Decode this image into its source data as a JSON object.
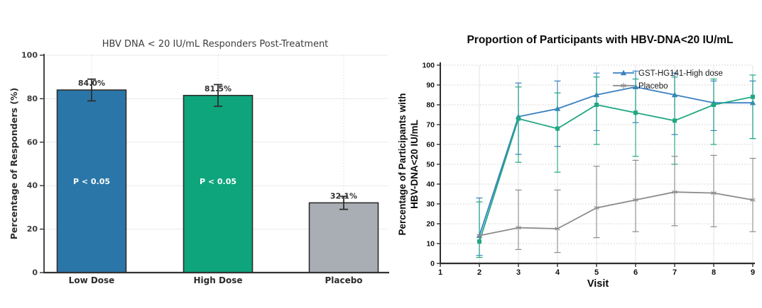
{
  "figure": {
    "background": "#ffffff"
  },
  "chart_data": [
    {
      "id": "responders-bar-chart",
      "type": "bar",
      "title": "HBV DNA < 20 IU/mL Responders Post-Treatment",
      "ylabel": "Percentage of Responders (%)",
      "categories": [
        "Low Dose",
        "High Dose",
        "Placebo"
      ],
      "values": [
        84.0,
        81.5,
        32.1
      ],
      "value_labels": [
        "84.0%",
        "81.5%",
        "32.1%"
      ],
      "error": [
        5,
        5,
        3
      ],
      "bar_annotations": [
        "P < 0.05",
        "P < 0.05",
        null
      ],
      "colors": [
        "#2b76a8",
        "#0ea57c",
        "#a9aeb4"
      ],
      "bar_edge_color": "#2d2d2d",
      "ylim": [
        0,
        100
      ],
      "yticks": [
        0,
        20,
        40,
        60,
        80,
        100
      ],
      "grid": {
        "horizontal": "solid-light",
        "vertical": "dotted-at-bar-centers"
      }
    },
    {
      "id": "participants-line-chart",
      "type": "line",
      "title": "Proportion of Participants with HBV-DNA<20 IU/mL",
      "xlabel": "Visit",
      "ylabel": "Percentage of Participants with\nHBV-DNA<20 IU/mL",
      "xlim": [
        1,
        9
      ],
      "ylim": [
        0,
        100
      ],
      "xticks": [
        1,
        2,
        3,
        4,
        5,
        6,
        7,
        8,
        9
      ],
      "yticks": [
        0,
        10,
        20,
        30,
        40,
        50,
        60,
        70,
        80,
        90,
        100
      ],
      "x": [
        2,
        3,
        4,
        5,
        6,
        7,
        8,
        9
      ],
      "series": [
        {
          "name": "GST-HG141-High dose",
          "color": "#3a80c0",
          "marker": "triangle",
          "in_legend": true,
          "values": [
            14,
            74,
            78,
            85,
            89,
            85,
            81,
            81
          ],
          "err_lo": [
            10,
            19,
            19,
            18,
            18,
            20,
            14,
            18
          ],
          "err_hi": [
            19,
            17,
            14,
            11,
            8,
            11,
            11,
            11
          ]
        },
        {
          "name": "",
          "color": "#21a783",
          "marker": "square",
          "in_legend": false,
          "values": [
            11,
            73,
            68,
            80,
            76,
            72,
            80,
            84
          ],
          "err_lo": [
            8,
            22,
            22,
            20,
            22,
            22,
            20,
            21
          ],
          "err_hi": [
            20,
            16,
            18,
            14,
            17,
            22,
            13,
            11
          ]
        },
        {
          "name": "Placebo",
          "color": "#8c8c8c",
          "marker": "star",
          "in_legend": true,
          "values": [
            14,
            18,
            17.5,
            28,
            32,
            36,
            35.5,
            32
          ],
          "err_lo": [
            0,
            11,
            12,
            15,
            16,
            17,
            17,
            16
          ],
          "err_hi": [
            0,
            19,
            19.5,
            21,
            20,
            18,
            19,
            21
          ]
        }
      ],
      "legend": {
        "position": "top-right",
        "entries": [
          "GST-HG141-High dose",
          "Placebo"
        ]
      }
    }
  ]
}
